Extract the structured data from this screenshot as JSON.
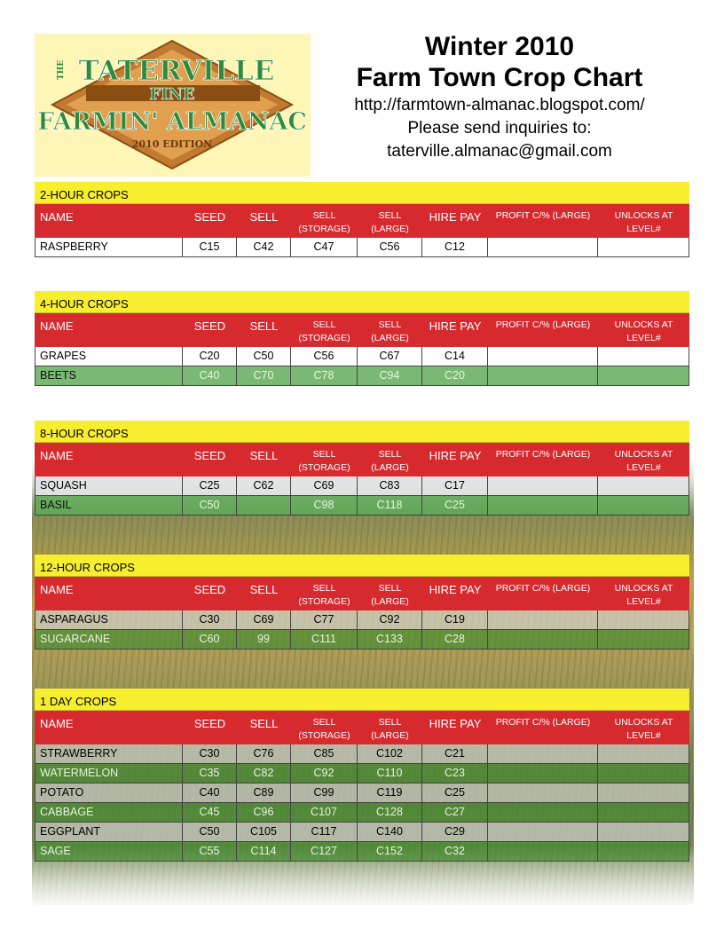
{
  "logo": {
    "line1": "TATERVILLE",
    "the": "THE",
    "line2": "FINE",
    "line3": "FARMIN' ALMANAC",
    "edition": "2010 EDITION"
  },
  "title": {
    "line1": "Winter 2010",
    "line2": "Farm Town Crop Chart",
    "url": "http://farmtown-almanac.blogspot.com/",
    "inquiries": "Please send inquiries to:",
    "email": "taterville.almanac@gmail.com"
  },
  "headers": {
    "name": "NAME",
    "seed": "SEED",
    "sell": "SELL",
    "sell_storage_1": "SELL",
    "sell_storage_2": "(STORAGE)",
    "sell_large_1": "SELL",
    "sell_large_2": "(LARGE)",
    "hire_pay": "HIRE PAY",
    "profit": "PROFIT  C/% (LARGE)",
    "unlocks_1": "UNLOCKS AT",
    "unlocks_2": "LEVEL#"
  },
  "sections": [
    {
      "title": "2-HOUR CROPS",
      "rows": [
        {
          "name": "RASPBERRY",
          "seed": "C15",
          "sell": "C42",
          "storage": "C47",
          "large": "C56",
          "hire": "C12",
          "profit": "",
          "unlock": ""
        }
      ]
    },
    {
      "title": "4-HOUR CROPS",
      "rows": [
        {
          "name": "GRAPES",
          "seed": "C20",
          "sell": "C50",
          "storage": "C56",
          "large": "C67",
          "hire": "C14",
          "profit": "",
          "unlock": ""
        },
        {
          "name": "BEETS",
          "seed": "C40",
          "sell": "C70",
          "storage": "C78",
          "large": "C94",
          "hire": "C20",
          "profit": "",
          "unlock": ""
        }
      ]
    },
    {
      "title": "8-HOUR CROPS",
      "rows": [
        {
          "name": "SQUASH",
          "seed": "C25",
          "sell": "C62",
          "storage": "C69",
          "large": "C83",
          "hire": "C17",
          "profit": "",
          "unlock": ""
        },
        {
          "name": "BASIL",
          "seed": "C50",
          "sell": "",
          "storage": "C98",
          "large": "C118",
          "hire": "C25",
          "profit": "",
          "unlock": ""
        }
      ]
    },
    {
      "title": "12-HOUR CROPS",
      "rows": [
        {
          "name": "ASPARAGUS",
          "seed": "C30",
          "sell": "C69",
          "storage": "C77",
          "large": "C92",
          "hire": "C19",
          "profit": "",
          "unlock": ""
        },
        {
          "name": "SUGARCANE",
          "seed": "C60",
          "sell": "99",
          "storage": "C111",
          "large": "C133",
          "hire": "C28",
          "profit": "",
          "unlock": ""
        }
      ]
    },
    {
      "title": "1 DAY CROPS",
      "rows": [
        {
          "name": "STRAWBERRY",
          "seed": "C30",
          "sell": "C76",
          "storage": "C85",
          "large": "C102",
          "hire": "C21",
          "profit": "",
          "unlock": ""
        },
        {
          "name": "WATERMELON",
          "seed": "C35",
          "sell": "C82",
          "storage": "C92",
          "large": "C110",
          "hire": "C23",
          "profit": "",
          "unlock": ""
        },
        {
          "name": "POTATO",
          "seed": "C40",
          "sell": "C89",
          "storage": "C99",
          "large": "C119",
          "hire": "C25",
          "profit": "",
          "unlock": ""
        },
        {
          "name": "CABBAGE",
          "seed": "C45",
          "sell": "C96",
          "storage": "C107",
          "large": "C128",
          "hire": "C27",
          "profit": "",
          "unlock": ""
        },
        {
          "name": "EGGPLANT",
          "seed": "C50",
          "sell": "C105",
          "storage": "C117",
          "large": "C140",
          "hire": "C29",
          "profit": "",
          "unlock": ""
        },
        {
          "name": "SAGE",
          "seed": "C55",
          "sell": "C114",
          "storage": "C127",
          "large": "C152",
          "hire": "C32",
          "profit": "",
          "unlock": ""
        }
      ]
    }
  ],
  "colors": {
    "header_red": "#d62a2f",
    "section_yellow": "#f7ee2e",
    "logo_bg": "#fdf6b6",
    "logo_green": "#2e8b3a",
    "logo_brown": "#8a4e12"
  }
}
